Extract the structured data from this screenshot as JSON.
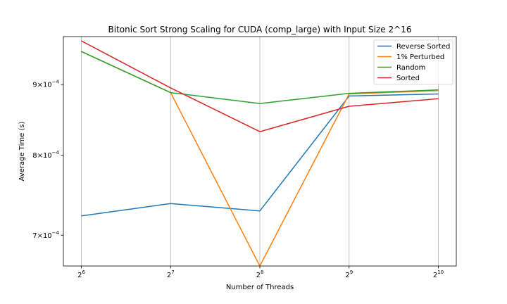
{
  "chart_data": {
    "type": "line",
    "title": "Bitonic Sort Strong Scaling for CUDA (comp_large) with Input Size 2^16",
    "xlabel": "Number of Threads",
    "ylabel": "Average Time (s)",
    "x": [
      64,
      128,
      256,
      512,
      1024
    ],
    "x_tick_labels": [
      {
        "base": "2",
        "exp": "6"
      },
      {
        "base": "2",
        "exp": "7"
      },
      {
        "base": "2",
        "exp": "8"
      },
      {
        "base": "2",
        "exp": "9"
      },
      {
        "base": "2",
        "exp": "10"
      }
    ],
    "x_scale": "log2",
    "y_scale": "log",
    "ylim": [
      0.000665,
      0.000975
    ],
    "y_ticks": [
      {
        "value": 0.0007,
        "mantissa": "7",
        "exp": "−4"
      },
      {
        "value": 0.0008,
        "mantissa": "8",
        "exp": "−4"
      },
      {
        "value": 0.0009,
        "mantissa": "9",
        "exp": "−4"
      }
    ],
    "grid": "x-only",
    "legend_placement": "top-right",
    "series": [
      {
        "name": "Reverse Sorted",
        "color": "#1f77b4",
        "values": [
          0.000723,
          0.000738,
          0.000729,
          0.000883,
          0.000886
        ]
      },
      {
        "name": "1% Perturbed",
        "color": "#ff7f0e",
        "values": [
          0.000951,
          0.000888,
          0.000665,
          0.000886,
          0.000891
        ]
      },
      {
        "name": "Random",
        "color": "#2ca02c",
        "values": [
          0.000951,
          0.000888,
          0.000872,
          0.000887,
          0.000892
        ]
      },
      {
        "name": "Sorted",
        "color": "#d62728",
        "values": [
          0.000968,
          0.000895,
          0.000832,
          0.000868,
          0.000879
        ]
      }
    ]
  }
}
